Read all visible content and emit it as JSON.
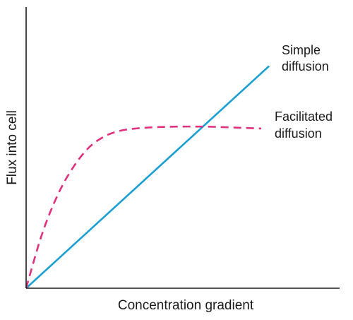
{
  "chart_data": {
    "type": "line",
    "title": "",
    "xlabel": "Concentration gradient",
    "ylabel": "Flux into cell",
    "xlim": [
      0,
      10
    ],
    "ylim": [
      0,
      10
    ],
    "grid": false,
    "ticks": false,
    "series": [
      {
        "name_lines": [
          "Simple",
          "diffusion"
        ],
        "style": "solid",
        "color": "#1a9fd4",
        "x": [
          0,
          7.75
        ],
        "y": [
          0,
          7.9
        ]
      },
      {
        "name_lines": [
          "Facilitated",
          "diffusion"
        ],
        "style": "dashed",
        "color": "#e0307e",
        "x": [
          0,
          0.5,
          1,
          1.5,
          2,
          2.5,
          3,
          3.5,
          4,
          4.5,
          5,
          5.5,
          6,
          6.5,
          7,
          7.5
        ],
        "y": [
          0,
          1.9,
          3.3,
          4.3,
          5.0,
          5.4,
          5.6,
          5.68,
          5.72,
          5.74,
          5.75,
          5.75,
          5.74,
          5.72,
          5.7,
          5.68
        ]
      }
    ]
  }
}
